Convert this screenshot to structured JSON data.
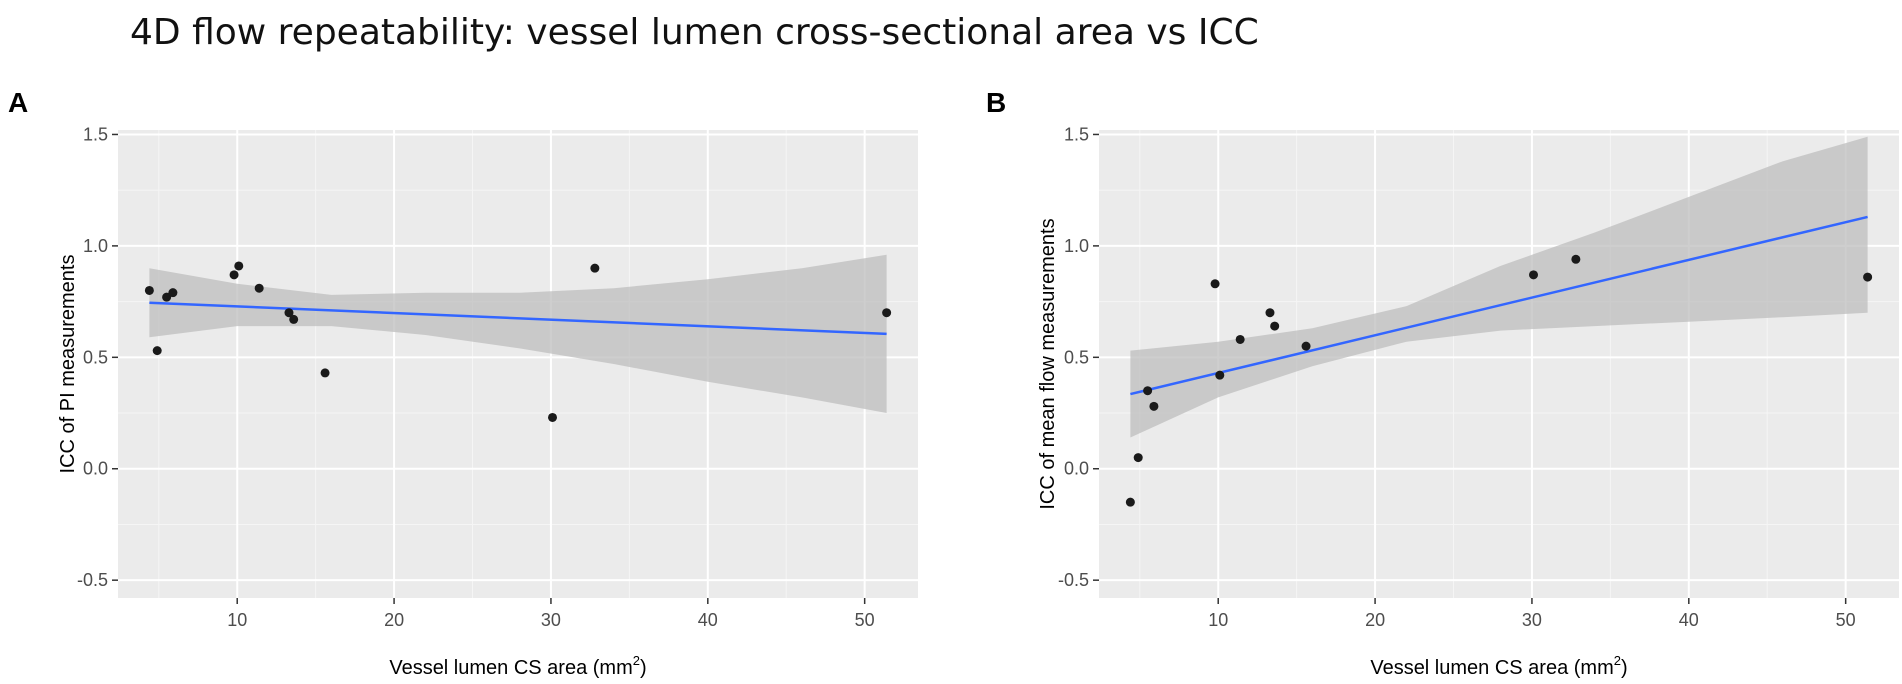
{
  "figure": {
    "title": "4D flow repeatability: vessel lumen cross-sectional area vs ICC"
  },
  "colors": {
    "panel_background": "#ebebeb",
    "grid_major": "#ffffff",
    "grid_minor": "#f5f5f5",
    "point": "#1a1a1a",
    "line": "#3366ff",
    "ribbon": "#bdbdbd",
    "tick_text": "#4d4d4d",
    "title_text": "#000000"
  },
  "chart_data": [
    {
      "id": "A",
      "panel_label": "A",
      "type": "scatter",
      "xlabel": "Vessel lumen CS area (mm",
      "xlabel_sup": "2",
      "xlabel_close": ")",
      "ylabel": "ICC of PI measurements",
      "xlim": [
        2.4,
        53.4
      ],
      "ylim": [
        -0.58,
        1.52
      ],
      "xticks": [
        10,
        20,
        30,
        40,
        50
      ],
      "xtick_labels": [
        "10",
        "20",
        "30",
        "40",
        "50"
      ],
      "yticks": [
        -0.5,
        0,
        0.5,
        1.0,
        1.5
      ],
      "ytick_labels": [
        "-0.5",
        "0.0",
        "0.5",
        "1.0",
        "1.5"
      ],
      "points": [
        {
          "x": 4.4,
          "y": 0.8
        },
        {
          "x": 4.9,
          "y": 0.53
        },
        {
          "x": 5.5,
          "y": 0.77
        },
        {
          "x": 5.9,
          "y": 0.79
        },
        {
          "x": 9.8,
          "y": 0.87
        },
        {
          "x": 10.1,
          "y": 0.91
        },
        {
          "x": 11.4,
          "y": 0.81
        },
        {
          "x": 13.3,
          "y": 0.7
        },
        {
          "x": 13.6,
          "y": 0.67
        },
        {
          "x": 15.6,
          "y": 0.43
        },
        {
          "x": 30.1,
          "y": 0.23
        },
        {
          "x": 32.8,
          "y": 0.9
        },
        {
          "x": 51.4,
          "y": 0.7
        }
      ],
      "fit": {
        "x": [
          4.4,
          51.4
        ],
        "y": [
          0.745,
          0.605
        ]
      },
      "ribbon": {
        "x": [
          4.4,
          10,
          16,
          22,
          28,
          34,
          40,
          46,
          51.4
        ],
        "lower": [
          0.59,
          0.64,
          0.64,
          0.6,
          0.54,
          0.47,
          0.39,
          0.32,
          0.25
        ],
        "upper": [
          0.9,
          0.83,
          0.78,
          0.79,
          0.79,
          0.81,
          0.85,
          0.9,
          0.96
        ]
      }
    },
    {
      "id": "B",
      "panel_label": "B",
      "type": "scatter",
      "xlabel": "Vessel lumen CS area (mm",
      "xlabel_sup": "2",
      "xlabel_close": ")",
      "ylabel": "ICC of mean flow measurements",
      "xlim": [
        2.4,
        53.4
      ],
      "ylim": [
        -0.58,
        1.52
      ],
      "xticks": [
        10,
        20,
        30,
        40,
        50
      ],
      "xtick_labels": [
        "10",
        "20",
        "30",
        "40",
        "50"
      ],
      "yticks": [
        -0.5,
        0,
        0.5,
        1.0,
        1.5
      ],
      "ytick_labels": [
        "-0.5",
        "0.0",
        "0.5",
        "1.0",
        "1.5"
      ],
      "points": [
        {
          "x": 4.4,
          "y": -0.15
        },
        {
          "x": 4.9,
          "y": 0.05
        },
        {
          "x": 5.5,
          "y": 0.35
        },
        {
          "x": 5.9,
          "y": 0.28
        },
        {
          "x": 9.8,
          "y": 0.83
        },
        {
          "x": 10.1,
          "y": 0.42
        },
        {
          "x": 11.4,
          "y": 0.58
        },
        {
          "x": 13.3,
          "y": 0.7
        },
        {
          "x": 13.6,
          "y": 0.64
        },
        {
          "x": 15.6,
          "y": 0.55
        },
        {
          "x": 30.1,
          "y": 0.87
        },
        {
          "x": 32.8,
          "y": 0.94
        },
        {
          "x": 51.4,
          "y": 0.86
        }
      ],
      "fit": {
        "x": [
          4.4,
          51.4
        ],
        "y": [
          0.335,
          1.13
        ]
      },
      "ribbon": {
        "x": [
          4.4,
          10,
          16,
          22,
          28,
          34,
          40,
          46,
          51.4
        ],
        "lower": [
          0.14,
          0.32,
          0.46,
          0.57,
          0.62,
          0.64,
          0.66,
          0.68,
          0.7
        ],
        "upper": [
          0.53,
          0.57,
          0.63,
          0.73,
          0.91,
          1.06,
          1.22,
          1.38,
          1.49
        ]
      }
    }
  ]
}
